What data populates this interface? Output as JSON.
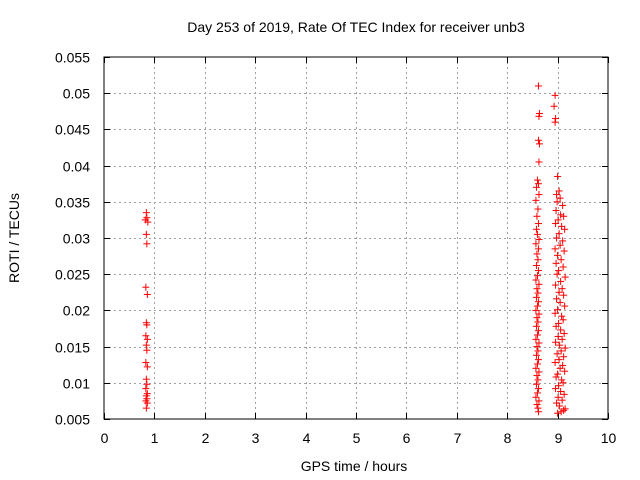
{
  "chart_data": {
    "type": "scatter",
    "title": "Day 253 of 2019, Rate Of TEC Index for receiver unb3",
    "xlabel": "GPS time / hours",
    "ylabel": "ROTI / TECUs",
    "xlim": [
      0,
      10
    ],
    "ylim": [
      0.005,
      0.055
    ],
    "xticks": [
      0,
      1,
      2,
      3,
      4,
      5,
      6,
      7,
      8,
      9,
      10
    ],
    "xtick_labels": [
      "0",
      "1",
      "2",
      "3",
      "4",
      "5",
      "6",
      "7",
      "8",
      "9",
      "10"
    ],
    "yticks": [
      0.005,
      0.01,
      0.015,
      0.02,
      0.025,
      0.03,
      0.035,
      0.04,
      0.045,
      0.05,
      0.055
    ],
    "ytick_labels": [
      "0.005",
      "0.01",
      "0.015",
      "0.02",
      "0.025",
      "0.03",
      "0.035",
      "0.04",
      "0.045",
      "0.05",
      "0.055"
    ],
    "grid": true,
    "marker": "+",
    "color": "#ff0000",
    "series": [
      {
        "name": "ROTI",
        "points": [
          [
            0.84,
            0.0335
          ],
          [
            0.85,
            0.0328
          ],
          [
            0.82,
            0.0325
          ],
          [
            0.87,
            0.0322
          ],
          [
            0.84,
            0.0305
          ],
          [
            0.85,
            0.0292
          ],
          [
            0.83,
            0.0232
          ],
          [
            0.86,
            0.0222
          ],
          [
            0.84,
            0.0183
          ],
          [
            0.85,
            0.018
          ],
          [
            0.83,
            0.0165
          ],
          [
            0.86,
            0.016
          ],
          [
            0.84,
            0.0152
          ],
          [
            0.85,
            0.0145
          ],
          [
            0.83,
            0.0128
          ],
          [
            0.86,
            0.0122
          ],
          [
            0.84,
            0.0105
          ],
          [
            0.85,
            0.0098
          ],
          [
            0.83,
            0.0092
          ],
          [
            0.86,
            0.0085
          ],
          [
            0.84,
            0.0082
          ],
          [
            0.85,
            0.0078
          ],
          [
            0.83,
            0.0075
          ],
          [
            0.86,
            0.0072
          ],
          [
            0.84,
            0.0065
          ],
          [
            8.62,
            0.051
          ],
          [
            8.64,
            0.0472
          ],
          [
            8.63,
            0.0468
          ],
          [
            8.62,
            0.0435
          ],
          [
            8.64,
            0.043
          ],
          [
            8.63,
            0.0405
          ],
          [
            8.6,
            0.038
          ],
          [
            8.62,
            0.0375
          ],
          [
            8.58,
            0.037
          ],
          [
            8.63,
            0.036
          ],
          [
            8.57,
            0.0352
          ],
          [
            8.61,
            0.034
          ],
          [
            8.59,
            0.033
          ],
          [
            8.62,
            0.032
          ],
          [
            8.58,
            0.0312
          ],
          [
            8.6,
            0.0305
          ],
          [
            8.63,
            0.0298
          ],
          [
            8.57,
            0.0292
          ],
          [
            8.62,
            0.0285
          ],
          [
            8.59,
            0.0278
          ],
          [
            8.61,
            0.027
          ],
          [
            8.58,
            0.0262
          ],
          [
            8.62,
            0.0255
          ],
          [
            8.6,
            0.0248
          ],
          [
            8.57,
            0.0242
          ],
          [
            8.63,
            0.0236
          ],
          [
            8.59,
            0.023
          ],
          [
            8.61,
            0.0224
          ],
          [
            8.58,
            0.0218
          ],
          [
            8.62,
            0.0212
          ],
          [
            8.6,
            0.0206
          ],
          [
            8.57,
            0.02
          ],
          [
            8.63,
            0.0195
          ],
          [
            8.59,
            0.019
          ],
          [
            8.61,
            0.0184
          ],
          [
            8.58,
            0.0178
          ],
          [
            8.62,
            0.0172
          ],
          [
            8.6,
            0.0166
          ],
          [
            8.57,
            0.016
          ],
          [
            8.63,
            0.0155
          ],
          [
            8.59,
            0.015
          ],
          [
            8.61,
            0.0144
          ],
          [
            8.58,
            0.0138
          ],
          [
            8.62,
            0.0132
          ],
          [
            8.6,
            0.0126
          ],
          [
            8.57,
            0.012
          ],
          [
            8.63,
            0.0115
          ],
          [
            8.59,
            0.011
          ],
          [
            8.61,
            0.0104
          ],
          [
            8.58,
            0.0098
          ],
          [
            8.62,
            0.0092
          ],
          [
            8.6,
            0.0086
          ],
          [
            8.57,
            0.008
          ],
          [
            8.63,
            0.0075
          ],
          [
            8.59,
            0.007
          ],
          [
            8.61,
            0.0065
          ],
          [
            8.62,
            0.006
          ],
          [
            8.95,
            0.0497
          ],
          [
            8.93,
            0.0482
          ],
          [
            8.96,
            0.0465
          ],
          [
            8.95,
            0.046
          ],
          [
            9.0,
            0.0385
          ],
          [
            9.03,
            0.0365
          ],
          [
            8.98,
            0.036
          ],
          [
            9.05,
            0.0355
          ],
          [
            8.99,
            0.035
          ],
          [
            9.1,
            0.0345
          ],
          [
            8.97,
            0.0338
          ],
          [
            9.06,
            0.0332
          ],
          [
            9.12,
            0.033
          ],
          [
            9.01,
            0.0325
          ],
          [
            8.96,
            0.032
          ],
          [
            9.08,
            0.0316
          ],
          [
            9.14,
            0.0312
          ],
          [
            9.03,
            0.0306
          ],
          [
            8.98,
            0.03
          ],
          [
            9.1,
            0.0296
          ],
          [
            9.05,
            0.029
          ],
          [
            8.95,
            0.0285
          ],
          [
            9.13,
            0.0282
          ],
          [
            9.0,
            0.0276
          ],
          [
            9.07,
            0.027
          ],
          [
            8.97,
            0.0265
          ],
          [
            9.11,
            0.026
          ],
          [
            9.02,
            0.0255
          ],
          [
            8.99,
            0.025
          ],
          [
            9.15,
            0.0246
          ],
          [
            9.06,
            0.024
          ],
          [
            8.96,
            0.0235
          ],
          [
            9.09,
            0.023
          ],
          [
            9.03,
            0.0225
          ],
          [
            9.12,
            0.0221
          ],
          [
            8.98,
            0.0216
          ],
          [
            9.05,
            0.0211
          ],
          [
            9.14,
            0.0206
          ],
          [
            9.0,
            0.0201
          ],
          [
            8.95,
            0.0196
          ],
          [
            9.08,
            0.0192
          ],
          [
            9.11,
            0.0187
          ],
          [
            9.02,
            0.0182
          ],
          [
            8.97,
            0.0178
          ],
          [
            9.06,
            0.0173
          ],
          [
            9.13,
            0.0168
          ],
          [
            9.01,
            0.0164
          ],
          [
            9.09,
            0.016
          ],
          [
            8.96,
            0.0156
          ],
          [
            9.04,
            0.0152
          ],
          [
            9.15,
            0.0148
          ],
          [
            9.07,
            0.0144
          ],
          [
            8.99,
            0.014
          ],
          [
            9.12,
            0.0136
          ],
          [
            9.03,
            0.0132
          ],
          [
            8.95,
            0.0128
          ],
          [
            9.1,
            0.0124
          ],
          [
            9.05,
            0.012
          ],
          [
            9.14,
            0.0116
          ],
          [
            9.0,
            0.0112
          ],
          [
            8.97,
            0.0108
          ],
          [
            9.08,
            0.0104
          ],
          [
            9.11,
            0.01
          ],
          [
            9.02,
            0.0096
          ],
          [
            8.96,
            0.0092
          ],
          [
            9.06,
            0.0088
          ],
          [
            9.13,
            0.0084
          ],
          [
            9.01,
            0.008
          ],
          [
            9.09,
            0.0076
          ],
          [
            8.98,
            0.0072
          ],
          [
            9.04,
            0.0068
          ],
          [
            9.15,
            0.0064
          ],
          [
            9.07,
            0.006
          ],
          [
            9.0,
            0.0058
          ],
          [
            9.12,
            0.0062
          ]
        ]
      }
    ]
  }
}
